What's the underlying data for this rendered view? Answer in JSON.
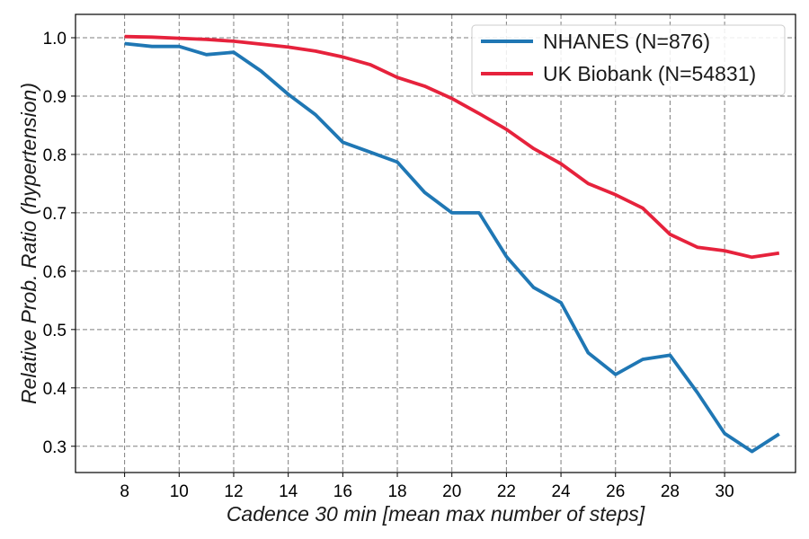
{
  "chart_data": {
    "type": "line",
    "xlabel": "Cadence 30 min [mean max number of steps]",
    "ylabel": "Relative Prob. Ratio (hypertension)",
    "xlim": [
      6.2,
      32.6
    ],
    "ylim": [
      0.255,
      1.04
    ],
    "xticks": [
      8,
      10,
      12,
      14,
      16,
      18,
      20,
      22,
      24,
      26,
      28,
      30
    ],
    "yticks": [
      0.3,
      0.4,
      0.5,
      0.6,
      0.7,
      0.8,
      0.9,
      1.0
    ],
    "ytick_labels": [
      "0.3",
      "0.4",
      "0.5",
      "0.6",
      "0.7",
      "0.8",
      "0.9",
      "1.0"
    ],
    "grid": true,
    "legend_position": "top-right",
    "x": [
      8,
      9,
      10,
      11,
      12,
      13,
      14,
      15,
      16,
      17,
      18,
      19,
      20,
      21,
      22,
      23,
      24,
      25,
      26,
      27,
      28,
      29,
      30,
      31,
      32
    ],
    "series": [
      {
        "name": "NHANES (N=876)",
        "color": "#1f77b4",
        "values": [
          0.99,
          0.985,
          0.985,
          0.971,
          0.975,
          0.943,
          0.903,
          0.868,
          0.821,
          0.804,
          0.787,
          0.735,
          0.7,
          0.7,
          0.625,
          0.572,
          0.546,
          0.46,
          0.423,
          0.449,
          0.456,
          0.392,
          0.322,
          0.291,
          0.321
        ]
      },
      {
        "name": "UK Biobank (N=54831)",
        "color": "#e6223c",
        "values": [
          1.002,
          1.001,
          0.999,
          0.997,
          0.994,
          0.989,
          0.984,
          0.977,
          0.967,
          0.954,
          0.932,
          0.917,
          0.896,
          0.87,
          0.843,
          0.81,
          0.784,
          0.75,
          0.731,
          0.708,
          0.663,
          0.641,
          0.635,
          0.624,
          0.631
        ]
      }
    ]
  }
}
